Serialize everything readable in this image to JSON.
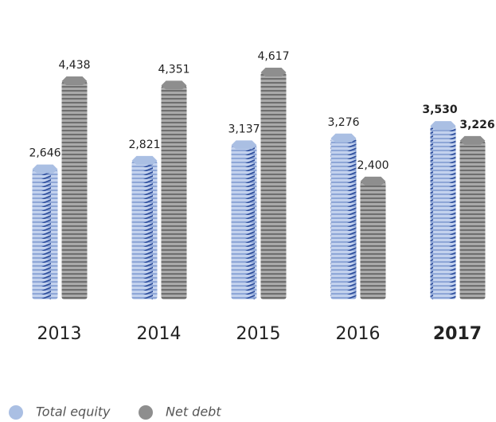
{
  "chart_data": {
    "type": "bar",
    "categories": [
      "2013",
      "2014",
      "2015",
      "2016",
      "2017"
    ],
    "series": [
      {
        "name": "Total equity",
        "color": "#aabfe3",
        "values": [
          2646,
          2821,
          3137,
          3276,
          3530
        ],
        "value_labels": [
          "2,646",
          "2,821",
          "3,137",
          "3,276",
          "3,530"
        ]
      },
      {
        "name": "Net debt",
        "color": "#8e8e8e",
        "values": [
          4438,
          4351,
          4617,
          2400,
          3226
        ],
        "value_labels": [
          "4,438",
          "4,351",
          "4,617",
          "2,400",
          "3,226"
        ]
      }
    ],
    "legend": "bottom-left"
  }
}
